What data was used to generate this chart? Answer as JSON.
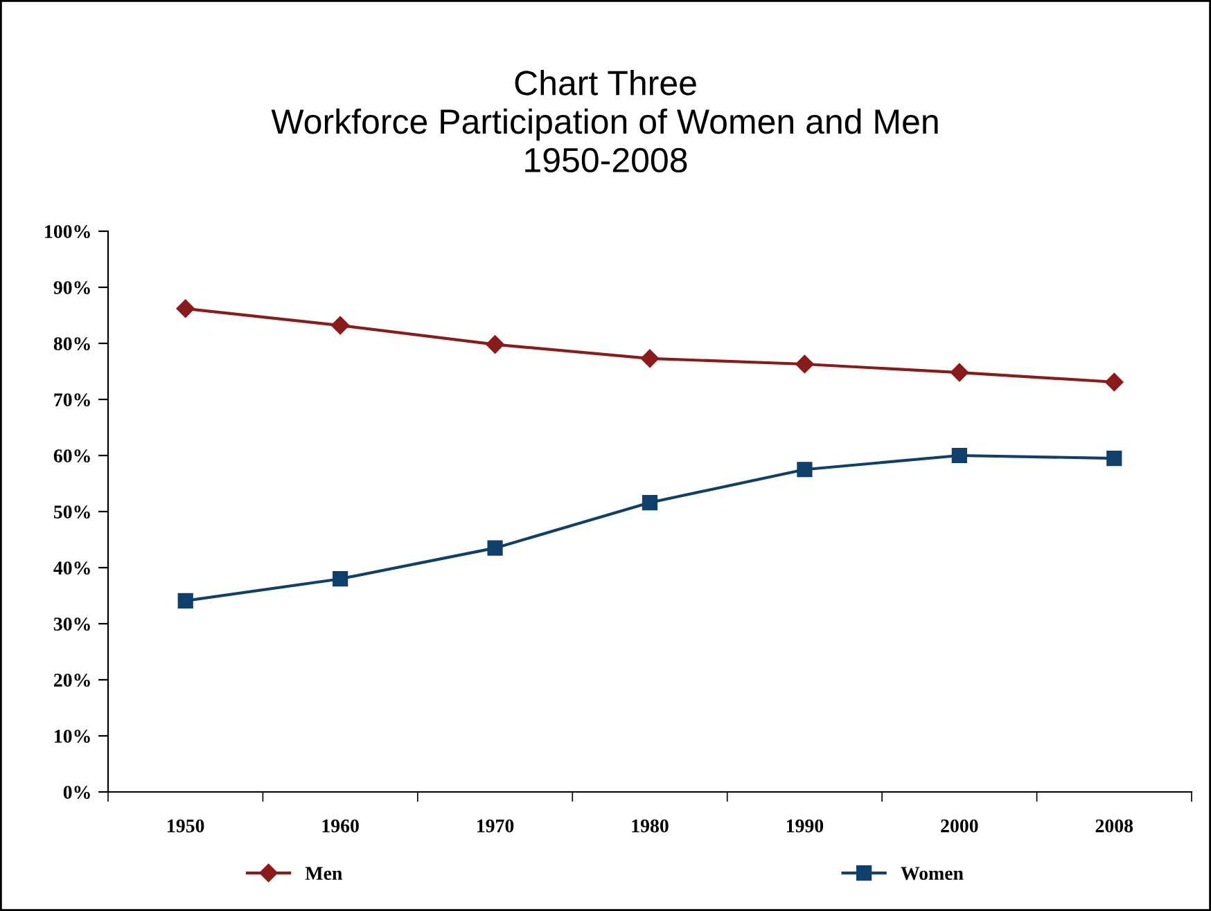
{
  "chart_data": {
    "type": "line",
    "title": "Chart Three\nWorkforce Participation of Women and Men\n1950-2008",
    "categories": [
      "1950",
      "1960",
      "1970",
      "1980",
      "1990",
      "2000",
      "2008"
    ],
    "series": [
      {
        "name": "Men",
        "color": "#8b1a1a",
        "marker": "diamond",
        "values": [
          86.2,
          83.2,
          79.8,
          77.3,
          76.3,
          74.8,
          73.1
        ]
      },
      {
        "name": "Women",
        "color": "#0f3f6b",
        "marker": "square",
        "values": [
          34.1,
          38.0,
          43.5,
          51.6,
          57.5,
          60.0,
          59.5
        ]
      }
    ],
    "ylim": [
      0,
      100
    ],
    "yticks": [
      {
        "value": 0,
        "label": "0%"
      },
      {
        "value": 10,
        "label": "10%"
      },
      {
        "value": 20,
        "label": "20%"
      },
      {
        "value": 30,
        "label": "30%"
      },
      {
        "value": 40,
        "label": "40%"
      },
      {
        "value": 50,
        "label": "50%"
      },
      {
        "value": 60,
        "label": "60%"
      },
      {
        "value": 70,
        "label": "70%"
      },
      {
        "value": 80,
        "label": "80%"
      },
      {
        "value": 90,
        "label": "90%"
      },
      {
        "value": 100,
        "label": "100%"
      }
    ],
    "grid": false,
    "legend": "bottom",
    "line_style": "solid"
  }
}
